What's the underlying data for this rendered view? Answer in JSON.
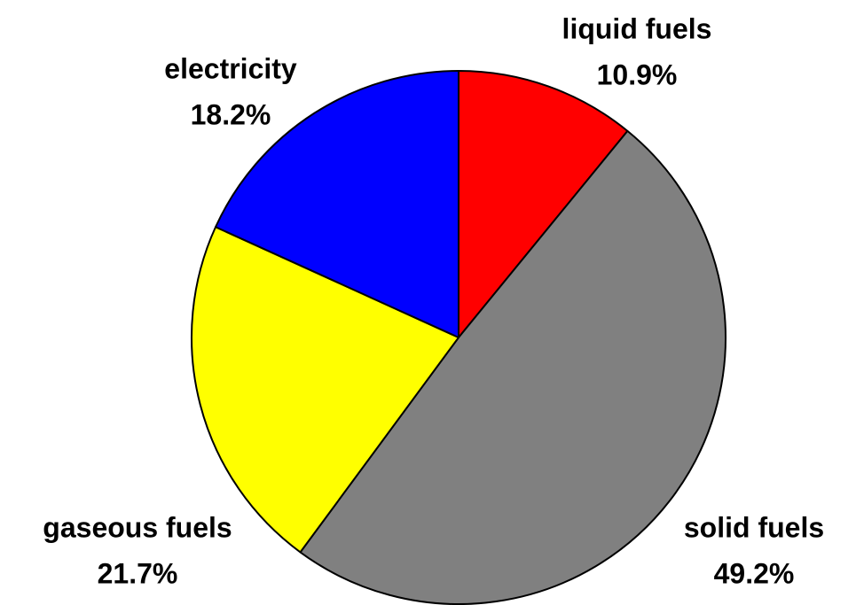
{
  "chart_data": {
    "type": "pie",
    "categories": [
      "liquid fuels",
      "solid fuels",
      "gaseous fuels",
      "electricity"
    ],
    "values": [
      10.9,
      49.2,
      21.7,
      18.2
    ],
    "value_labels": [
      "10.9%",
      "49.2%",
      "21.7%",
      "18.2%"
    ],
    "colors": [
      "#ff0000",
      "#808080",
      "#ffff00",
      "#0000ff"
    ]
  }
}
